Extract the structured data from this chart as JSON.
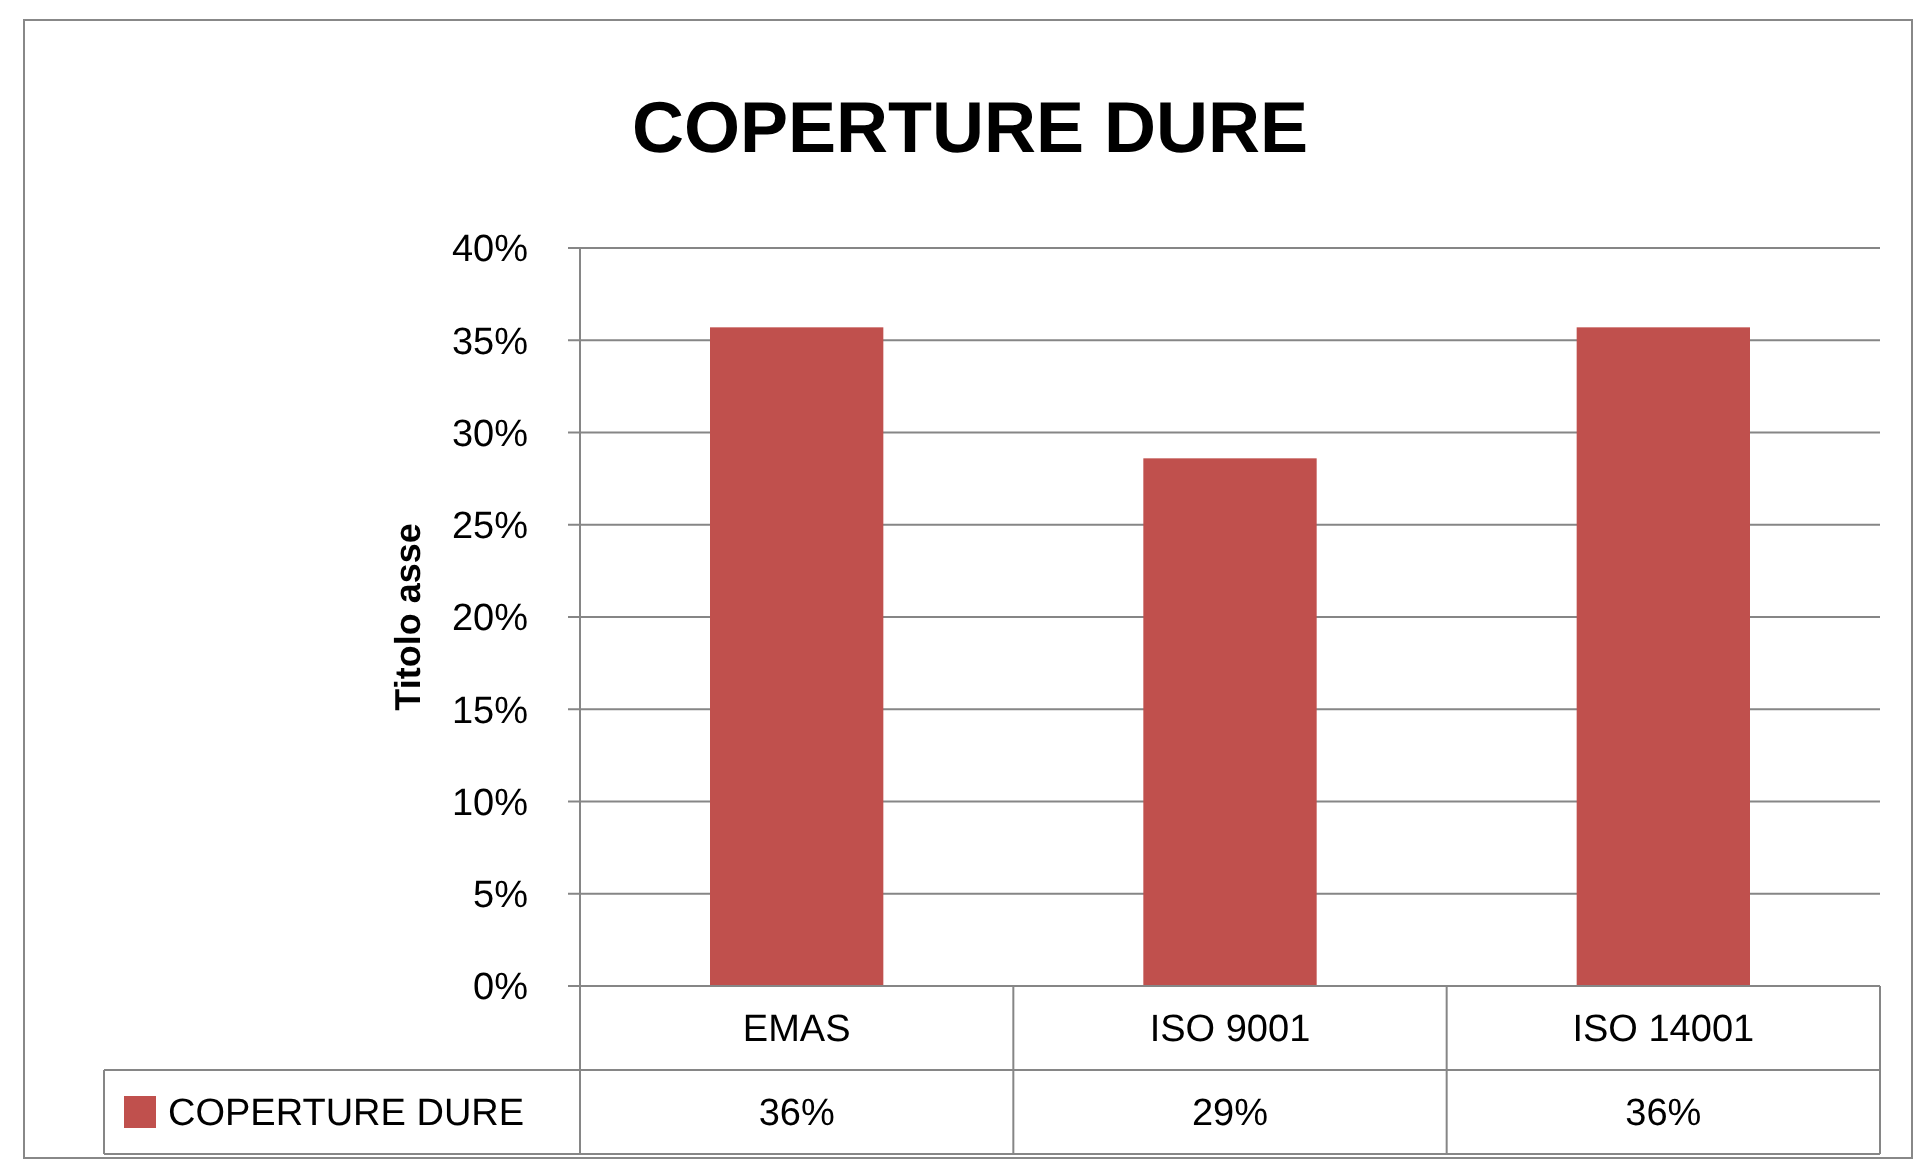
{
  "chart_data": {
    "type": "bar",
    "title": "COPERTURE DURE",
    "ylabel": "Titolo asse",
    "categories": [
      "EMAS",
      "ISO 9001",
      "ISO 14001"
    ],
    "series": [
      {
        "name": "COPERTURE DURE",
        "color": "#c0504d",
        "values": [
          35.7,
          28.6,
          35.7
        ],
        "value_labels": [
          "36%",
          "29%",
          "36%"
        ]
      }
    ],
    "ylim": [
      0,
      40
    ],
    "yticks": [
      {
        "value": 0,
        "label": "0%"
      },
      {
        "value": 5,
        "label": "5%"
      },
      {
        "value": 10,
        "label": "10%"
      },
      {
        "value": 15,
        "label": "15%"
      },
      {
        "value": 20,
        "label": "20%"
      },
      {
        "value": 25,
        "label": "25%"
      },
      {
        "value": 30,
        "label": "30%"
      },
      {
        "value": 35,
        "label": "35%"
      },
      {
        "value": 40,
        "label": "40%"
      }
    ],
    "grid": "y",
    "legend": "bottom"
  }
}
